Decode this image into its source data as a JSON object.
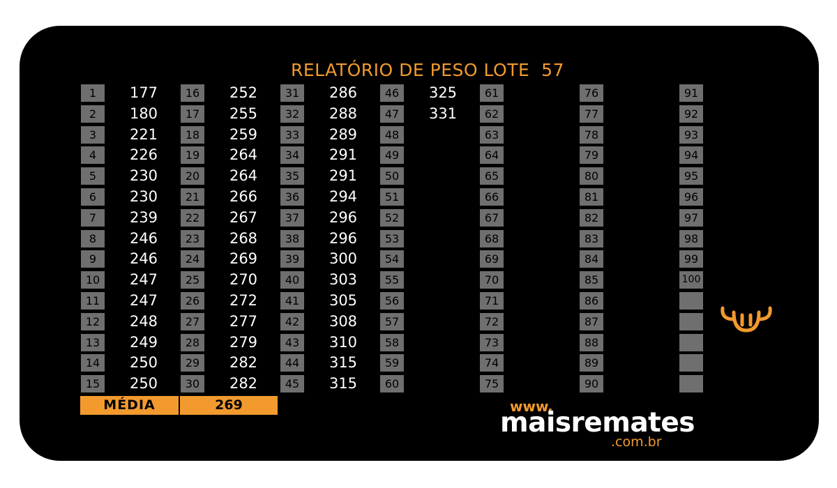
{
  "title": "RELATÓRIO DE PESO LOTE  57",
  "colors": {
    "accent": "#f29a2e",
    "background": "#000000",
    "index_cell": "#6f6f6f"
  },
  "weights": [
    177,
    180,
    221,
    226,
    230,
    230,
    239,
    246,
    246,
    247,
    247,
    248,
    249,
    250,
    250,
    252,
    255,
    259,
    264,
    264,
    266,
    267,
    268,
    269,
    270,
    272,
    277,
    279,
    282,
    282,
    286,
    288,
    289,
    291,
    291,
    294,
    296,
    296,
    300,
    303,
    305,
    308,
    310,
    315,
    315,
    325,
    331
  ],
  "index_max": 100,
  "blank_cells_after_100": 5,
  "media": {
    "label": "MÉDIA",
    "value": "269"
  },
  "logo": {
    "www": "www.",
    "brand": "maisremates",
    "tld": ".com.br",
    "icon": "bull-head-icon"
  }
}
